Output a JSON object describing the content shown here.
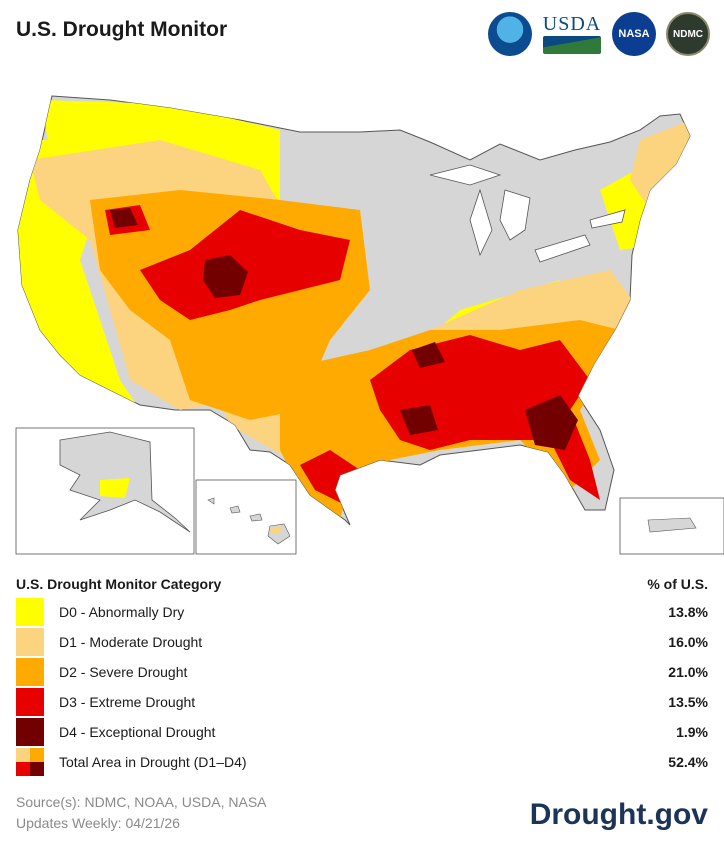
{
  "title": "U.S. Drought Monitor",
  "logos": {
    "noaa": "NOAA",
    "usda": "USDA",
    "nasa": "NASA",
    "ndmc": "NDMC"
  },
  "colors": {
    "none": "#d6d6d6",
    "D0": "#ffff00",
    "D1": "#fcd37f",
    "D2": "#ffaa00",
    "D3": "#e60000",
    "D4": "#730000"
  },
  "legend": {
    "heading": "U.S. Drought Monitor Category",
    "pct_heading": "% of U.S.",
    "items": [
      {
        "label": "D0 - Abnormally Dry",
        "pct": "13.8%",
        "color": "#ffff00"
      },
      {
        "label": "D1 - Moderate Drought",
        "pct": "16.0%",
        "color": "#fcd37f"
      },
      {
        "label": "D2 - Severe Drought",
        "pct": "21.0%",
        "color": "#ffaa00"
      },
      {
        "label": "D3 - Extreme Drought",
        "pct": "13.5%",
        "color": "#e60000"
      },
      {
        "label": "D4 - Exceptional Drought",
        "pct": "1.9%",
        "color": "#730000"
      }
    ],
    "total": {
      "label": "Total Area in Drought (D1–D4)",
      "pct": "52.4%"
    }
  },
  "footer": {
    "source": "Source(s): NDMC, NOAA, USDA, NASA",
    "updates": "Updates Weekly: 04/21/26",
    "brand": "Drought.gov"
  }
}
